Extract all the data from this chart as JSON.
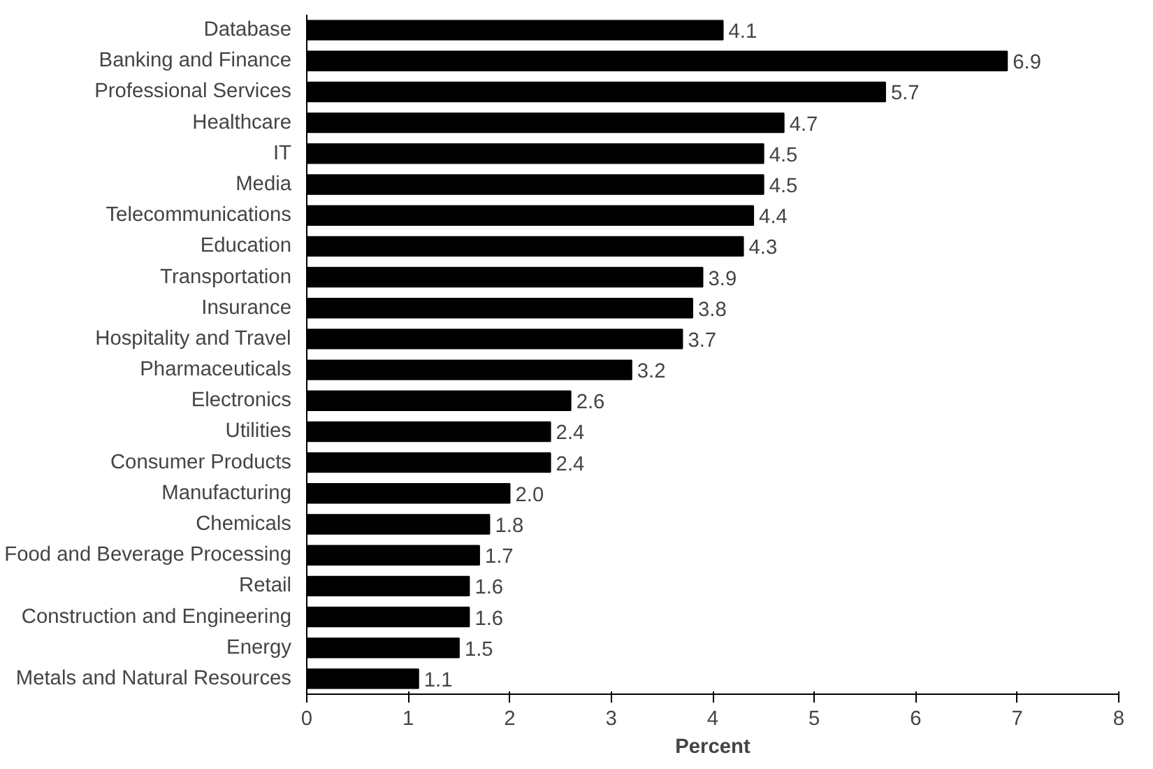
{
  "chart_data": {
    "type": "bar",
    "orientation": "horizontal",
    "xlabel": "Percent",
    "categories": [
      "Database",
      "Banking and Finance",
      "Professional Services",
      "Healthcare",
      "IT",
      "Media",
      "Telecommunications",
      "Education",
      "Transportation",
      "Insurance",
      "Hospitality and Travel",
      "Pharmaceuticals",
      "Electronics",
      "Utilities",
      "Consumer Products",
      "Manufacturing",
      "Chemicals",
      "Food and Beverage Processing",
      "Retail",
      "Construction and Engineering",
      "Energy",
      "Metals and Natural Resources"
    ],
    "values": [
      4.1,
      6.9,
      5.7,
      4.7,
      4.5,
      4.5,
      4.4,
      4.3,
      3.9,
      3.8,
      3.7,
      3.2,
      2.6,
      2.4,
      2.4,
      2.0,
      1.8,
      1.7,
      1.6,
      1.6,
      1.5,
      1.1
    ],
    "value_labels": [
      "4.1",
      "6.9",
      "5.7",
      "4.7",
      "4.5",
      "4.5",
      "4.4",
      "4.3",
      "3.9",
      "3.8",
      "3.7",
      "3.2",
      "2.6",
      "2.4",
      "2.4",
      "2.0",
      "1.8",
      "1.7",
      "1.6",
      "1.6",
      "1.5",
      "1.1"
    ],
    "color": "#000000",
    "xlim": [
      0,
      8
    ],
    "xticks": [
      0,
      1,
      2,
      3,
      4,
      5,
      6,
      7,
      8
    ],
    "grid": false
  }
}
